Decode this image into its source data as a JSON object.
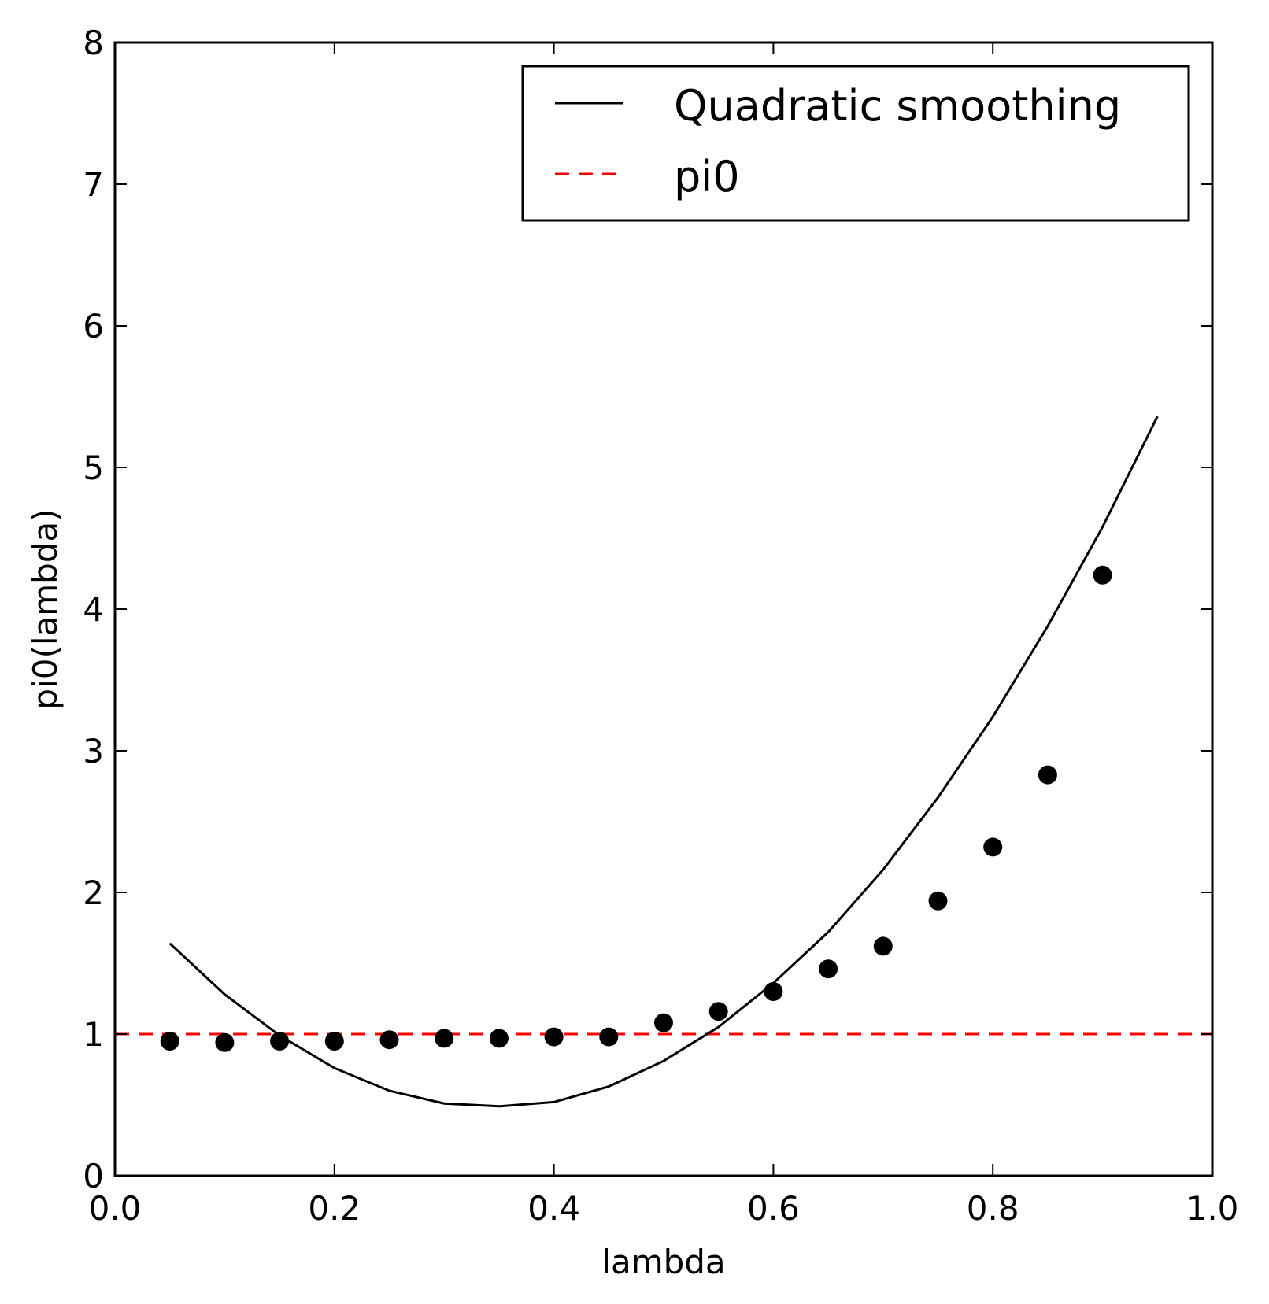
{
  "chart_data": {
    "type": "line",
    "title": "",
    "xlabel": "lambda",
    "ylabel": "pi0(lambda)",
    "xlim": [
      0.0,
      1.0
    ],
    "ylim": [
      0,
      8
    ],
    "xticks": [
      "0.0",
      "0.2",
      "0.4",
      "0.6",
      "0.8",
      "1.0"
    ],
    "yticks": [
      "0",
      "1",
      "2",
      "3",
      "4",
      "5",
      "6",
      "7",
      "8"
    ],
    "grid": false,
    "legend_position": "upper-right",
    "legend_labels": [
      "Quadratic smoothing",
      "pi0"
    ],
    "colors": {
      "smoothing": "#000000",
      "pi0": "#ff0000",
      "points": "#000000"
    },
    "series": [
      {
        "name": "Quadratic smoothing",
        "style": "solid",
        "x": [
          0.05,
          0.1,
          0.15,
          0.2,
          0.25,
          0.3,
          0.35,
          0.4,
          0.45,
          0.5,
          0.55,
          0.6,
          0.65,
          0.7,
          0.75,
          0.8,
          0.85,
          0.9,
          0.95
        ],
        "y": [
          1.64,
          1.28,
          0.99,
          0.76,
          0.6,
          0.51,
          0.49,
          0.52,
          0.63,
          0.81,
          1.05,
          1.36,
          1.72,
          2.16,
          2.67,
          3.24,
          3.88,
          4.58,
          5.36
        ]
      },
      {
        "name": "pi0",
        "style": "dashed",
        "x": [
          0.0,
          1.0
        ],
        "y": [
          1.0,
          1.0
        ]
      },
      {
        "style": "markers",
        "x": [
          0.05,
          0.1,
          0.15,
          0.2,
          0.25,
          0.3,
          0.35,
          0.4,
          0.45,
          0.5,
          0.55,
          0.6,
          0.65,
          0.7,
          0.75,
          0.8,
          0.85,
          0.9
        ],
        "y": [
          0.95,
          0.94,
          0.95,
          0.95,
          0.96,
          0.97,
          0.97,
          0.98,
          0.98,
          1.08,
          1.16,
          1.3,
          1.46,
          1.62,
          1.94,
          2.32,
          2.83,
          4.24
        ]
      }
    ]
  }
}
